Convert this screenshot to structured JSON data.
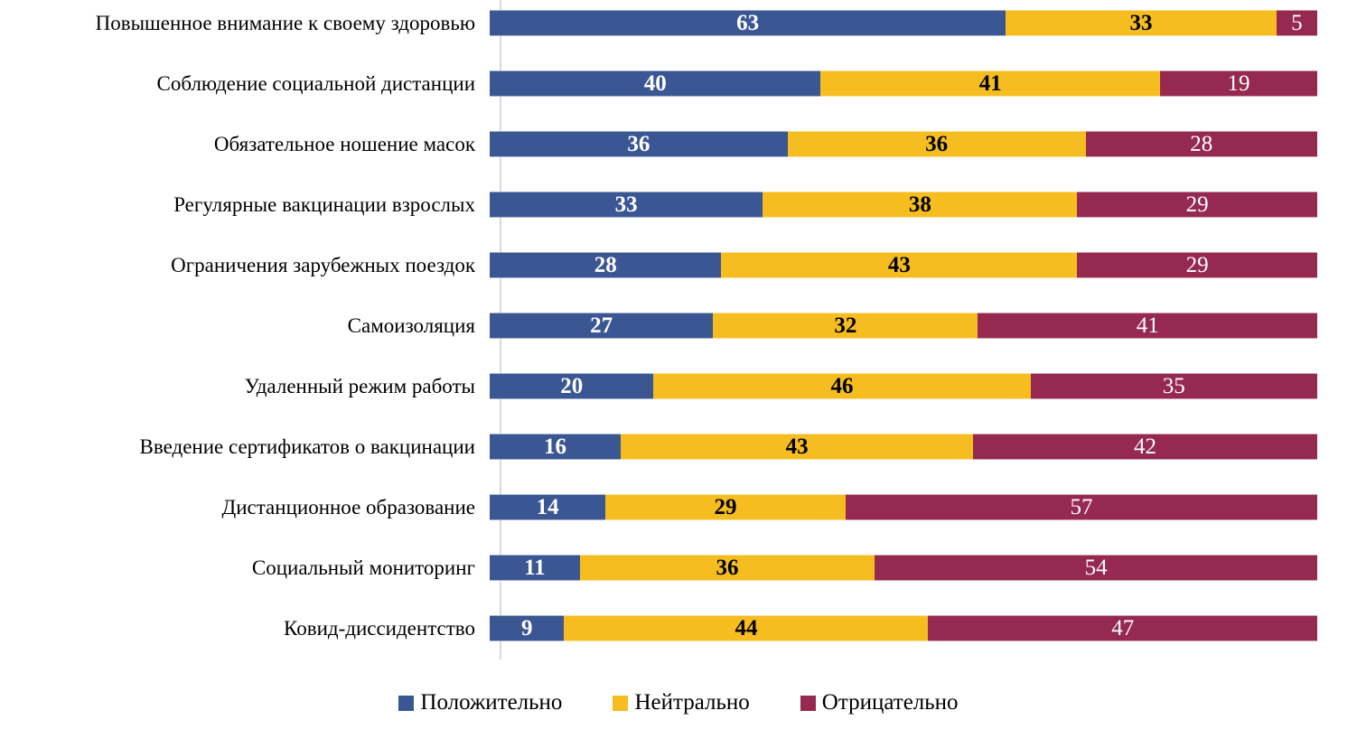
{
  "chart_data": {
    "type": "bar",
    "subtype": "stacked-horizontal-100pct",
    "title": "",
    "xlabel": "",
    "ylabel": "",
    "grid": false,
    "legend_position": "bottom",
    "background_color": "#ffffff",
    "axis_line_color": "#d9d9d9",
    "categories": [
      "Повышенное внимание к своему здоровью",
      "Соблюдение социальной дистанции",
      "Обязательное ношение масок",
      "Регулярные вакцинации взрослых",
      "Ограничения зарубежных поездок",
      "Самоизоляция",
      "Удаленный режим работы",
      "Введение сертификатов о вакцинации",
      "Дистанционное образование",
      "Социальный мониторинг",
      "Ковид-диссидентство"
    ],
    "series": [
      {
        "name": "Положительно",
        "color": "#3a5693",
        "label_color": "#ffffff",
        "label_bold": true,
        "values": [
          63,
          40,
          36,
          33,
          28,
          27,
          20,
          16,
          14,
          11,
          9
        ]
      },
      {
        "name": "Нейтрально",
        "color": "#f5bd1f",
        "label_color": "#000000",
        "label_bold": true,
        "values": [
          33,
          41,
          36,
          38,
          43,
          32,
          46,
          43,
          29,
          36,
          44
        ]
      },
      {
        "name": "Отрицательно",
        "color": "#952950",
        "label_color": "#ffffff",
        "label_bold": false,
        "values": [
          5,
          19,
          28,
          29,
          29,
          41,
          35,
          42,
          57,
          54,
          47
        ]
      }
    ],
    "legend": [
      "Положительно",
      "Нейтрально",
      "Отрицательно"
    ]
  }
}
